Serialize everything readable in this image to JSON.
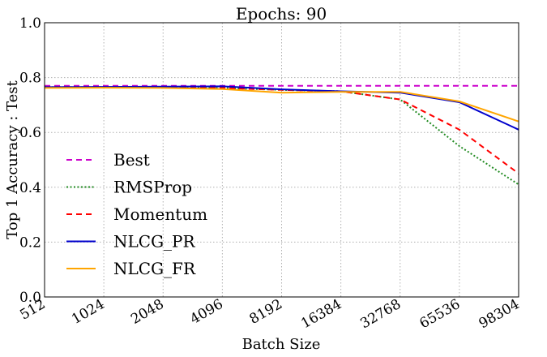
{
  "chart_data": {
    "type": "line",
    "title": "Epochs: 90",
    "xlabel": "Batch Size",
    "ylabel": "Top 1 Accuracy : Test",
    "categories": [
      "512",
      "1024",
      "2048",
      "4096",
      "8192",
      "16384",
      "32768",
      "65536",
      "98304"
    ],
    "ylim": [
      0.0,
      1.0
    ],
    "yticks": [
      "0.0",
      "0.2",
      "0.4",
      "0.6",
      "0.8",
      "1.0"
    ],
    "grid": true,
    "legend_position": "left",
    "series": [
      {
        "name": "Best",
        "color": "#cc00cc",
        "style": "dashed",
        "values": [
          0.77,
          0.77,
          0.77,
          0.77,
          0.77,
          0.77,
          0.77,
          0.77,
          0.77
        ]
      },
      {
        "name": "RMSProp",
        "color": "#228b22",
        "style": "dotted",
        "values": [
          0.765,
          0.765,
          0.763,
          0.762,
          0.755,
          0.75,
          0.72,
          0.55,
          0.41
        ]
      },
      {
        "name": "Momentum",
        "color": "#ff0000",
        "style": "dashed",
        "values": [
          0.765,
          0.765,
          0.763,
          0.762,
          0.755,
          0.75,
          0.72,
          0.61,
          0.45
        ]
      },
      {
        "name": "NLCG_PR",
        "color": "#0000cc",
        "style": "solid",
        "values": [
          0.765,
          0.766,
          0.767,
          0.768,
          0.757,
          0.75,
          0.745,
          0.71,
          0.61
        ]
      },
      {
        "name": "NLCG_FR",
        "color": "#ffa500",
        "style": "solid",
        "values": [
          0.762,
          0.763,
          0.762,
          0.758,
          0.745,
          0.748,
          0.748,
          0.713,
          0.64
        ]
      }
    ]
  }
}
